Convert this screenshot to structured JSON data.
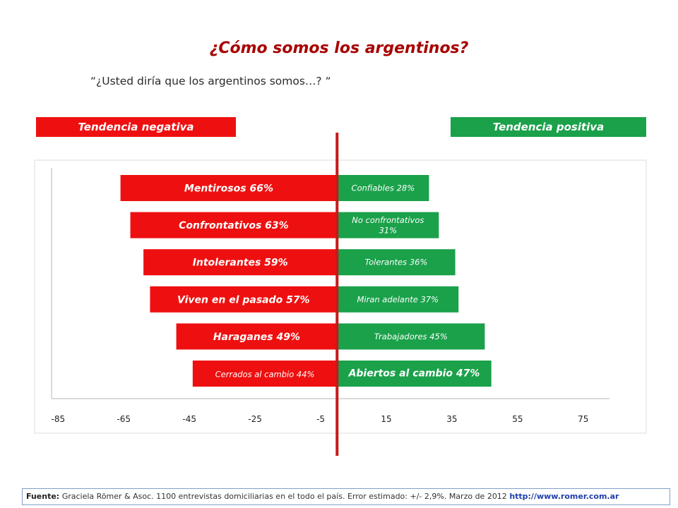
{
  "title": "¿Cómo somos los argentinos?",
  "question": "“¿Usted diría que los argentinos somos…? “",
  "left_header": "Tendencia negativa",
  "right_header": "Tendencia positiva",
  "colors": {
    "negative": "#ee1010",
    "positive": "#1aa14a",
    "axis_line": "#c41a1a",
    "title": "#a80000"
  },
  "chart_data": {
    "type": "bar",
    "orientation": "horizontal-diverging",
    "x_ticks": [
      -85,
      -65,
      -45,
      -25,
      -5,
      15,
      35,
      55,
      75
    ],
    "xlim": [
      -87,
      83
    ],
    "zero_at": 0,
    "grid": false,
    "series": [
      {
        "name": "Tendencia negativa",
        "values": [
          -66,
          -63,
          -59,
          -57,
          -49,
          -44
        ],
        "labels": [
          "Mentirosos 66%",
          "Confrontativos 63%",
          "Intolerantes 59%",
          "Viven en el pasado 57%",
          "Haraganes 49%",
          "Cerrados al  cambio 44%"
        ],
        "emphasis": [
          true,
          true,
          true,
          true,
          true,
          false
        ]
      },
      {
        "name": "Tendencia positiva",
        "values": [
          28,
          31,
          36,
          37,
          45,
          47
        ],
        "labels": [
          "Confiables 28%",
          "No confrontativos 31%",
          "Tolerantes 36%",
          "Miran adelante 37%",
          "Trabajadores 45%",
          "Abiertos al cambio 47%"
        ],
        "label_lines": [
          [
            "Confiables 28%"
          ],
          [
            "No confrontativos",
            "31%"
          ],
          [
            "Tolerantes 36%"
          ],
          [
            "Miran adelante 37%"
          ],
          [
            "Trabajadores 45%"
          ],
          [
            "Abiertos al cambio 47%"
          ]
        ],
        "emphasis": [
          false,
          false,
          false,
          false,
          false,
          true
        ]
      }
    ]
  },
  "footer": {
    "label": "Fuente:",
    "text": " Graciela Römer & Asoc. 1100 entrevistas domiciliarias en el todo el país. Error estimado: +/- 2,9%. Marzo de 2012 ",
    "url": "http://www.romer.com.ar"
  }
}
